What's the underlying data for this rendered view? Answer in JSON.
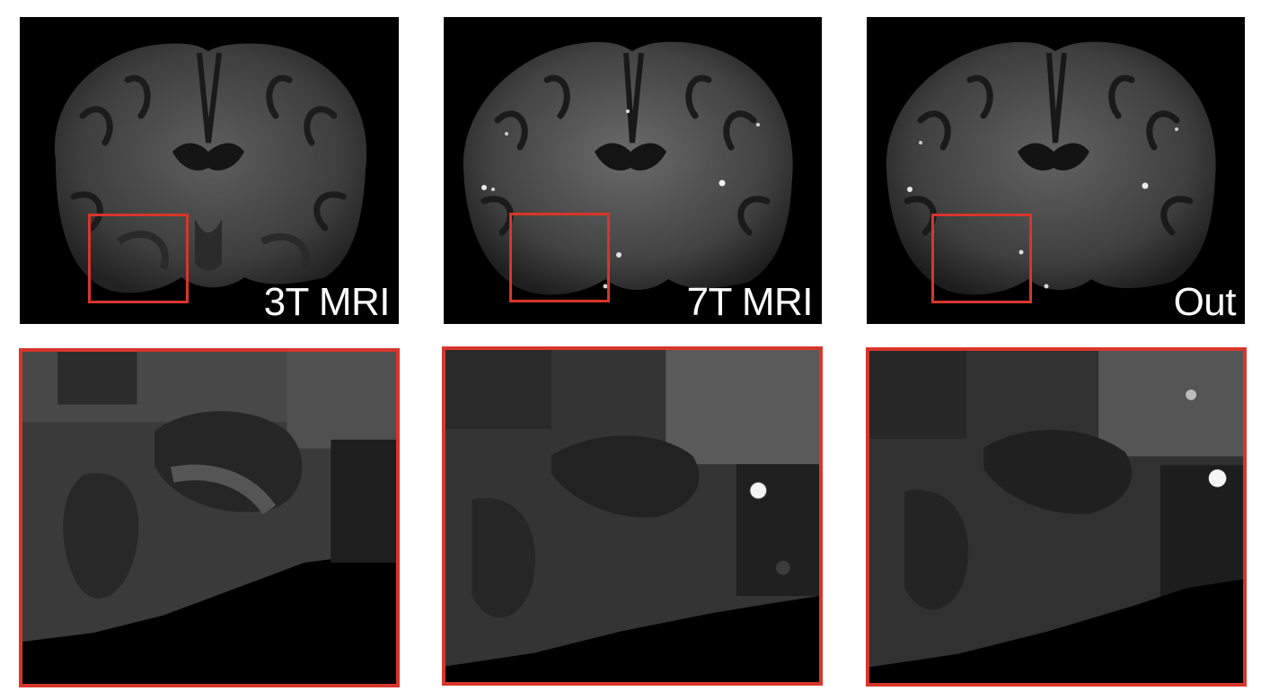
{
  "panels": [
    {
      "id": "3t",
      "label": "3T MRI"
    },
    {
      "id": "7t",
      "label": "7T MRI"
    },
    {
      "id": "out",
      "label": "Out"
    }
  ],
  "colors": {
    "roi_box": "#d8352b",
    "background": "#000000",
    "label_text": "#ffffff"
  }
}
